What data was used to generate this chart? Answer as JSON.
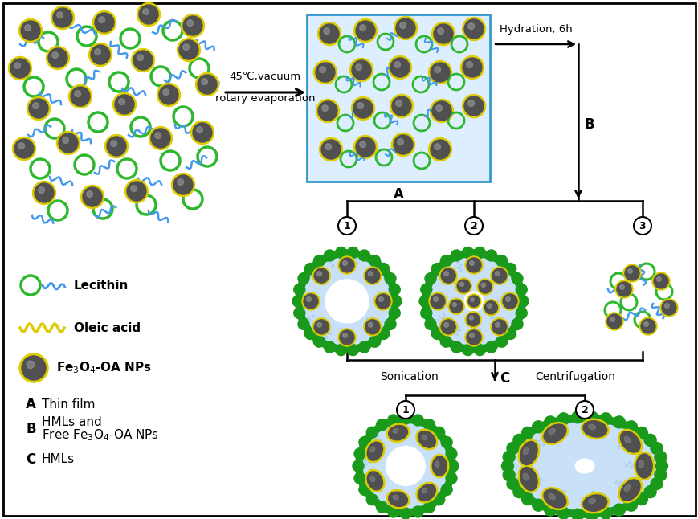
{
  "bg_color": "#ffffff",
  "green_color": "#2db82d",
  "dark_green": "#1a9a1a",
  "blue_color": "#4499ee",
  "yellow_color": "#ddcc00",
  "step_arrow_text1": "45℃,vacuum",
  "step_arrow_text2": "rotary evaporation",
  "hydration_text": "Hydration, 6h",
  "label_B": "B",
  "label_C": "C",
  "label_A": "A",
  "sonication_text": "Sonication",
  "centrifugation_text": "Centrifugation",
  "legend_lecithin": "Lecithin",
  "legend_oleic": "Oleic acid",
  "legend_fe3o4": "Fe$_3$O$_4$-OA NPs"
}
